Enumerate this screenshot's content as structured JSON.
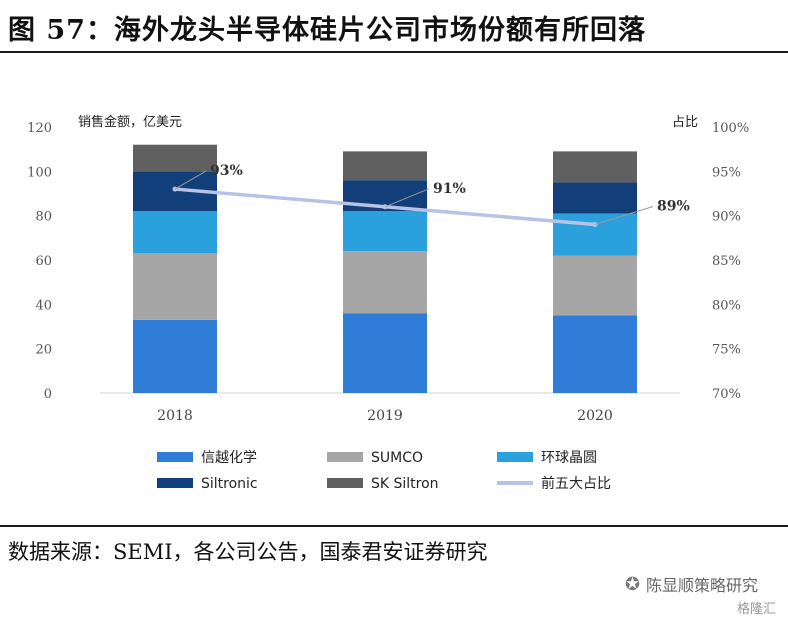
{
  "header": {
    "title": "图 57：海外龙头半导体硅片公司市场份额有所回落"
  },
  "footer": {
    "source": "数据来源：SEMI，各公司公告，国泰君安证券研究",
    "watermark": "陈显顺策略研究",
    "watermark2": "格隆汇"
  },
  "colors": {
    "信越化学": "#2f7dd6",
    "SUMCO": "#a6a6a6",
    "环球晶圆": "#2aa0dc",
    "Siltronic": "#123f7a",
    "SK Siltron": "#606060",
    "前五大占比": "#b6c3e6"
  },
  "chart_data": {
    "type": "bar",
    "stacked": true,
    "categories": [
      "2018",
      "2019",
      "2020"
    ],
    "left_axis": {
      "label": "销售金额，亿美元",
      "ylim": [
        0,
        120
      ],
      "ticks": [
        0,
        20,
        40,
        60,
        80,
        100,
        120
      ]
    },
    "right_axis": {
      "label": "占比",
      "ylim": [
        70,
        100
      ],
      "ticks": [
        "70%",
        "75%",
        "80%",
        "85%",
        "90%",
        "95%",
        "100%"
      ]
    },
    "series": [
      {
        "name": "信越化学",
        "type": "bar",
        "values": [
          33,
          36,
          35
        ]
      },
      {
        "name": "SUMCO",
        "type": "bar",
        "values": [
          30,
          28,
          27
        ]
      },
      {
        "name": "环球晶圆",
        "type": "bar",
        "values": [
          19,
          18,
          19
        ]
      },
      {
        "name": "Siltronic",
        "type": "bar",
        "values": [
          18,
          14,
          14
        ]
      },
      {
        "name": "SK Siltron",
        "type": "bar",
        "values": [
          12,
          13,
          14
        ]
      },
      {
        "name": "前五大占比",
        "type": "line",
        "axis": "right",
        "values": [
          93,
          91,
          89
        ],
        "labels": [
          "93%",
          "91%",
          "89%"
        ]
      }
    ],
    "legend_position": "bottom",
    "grid": false
  }
}
